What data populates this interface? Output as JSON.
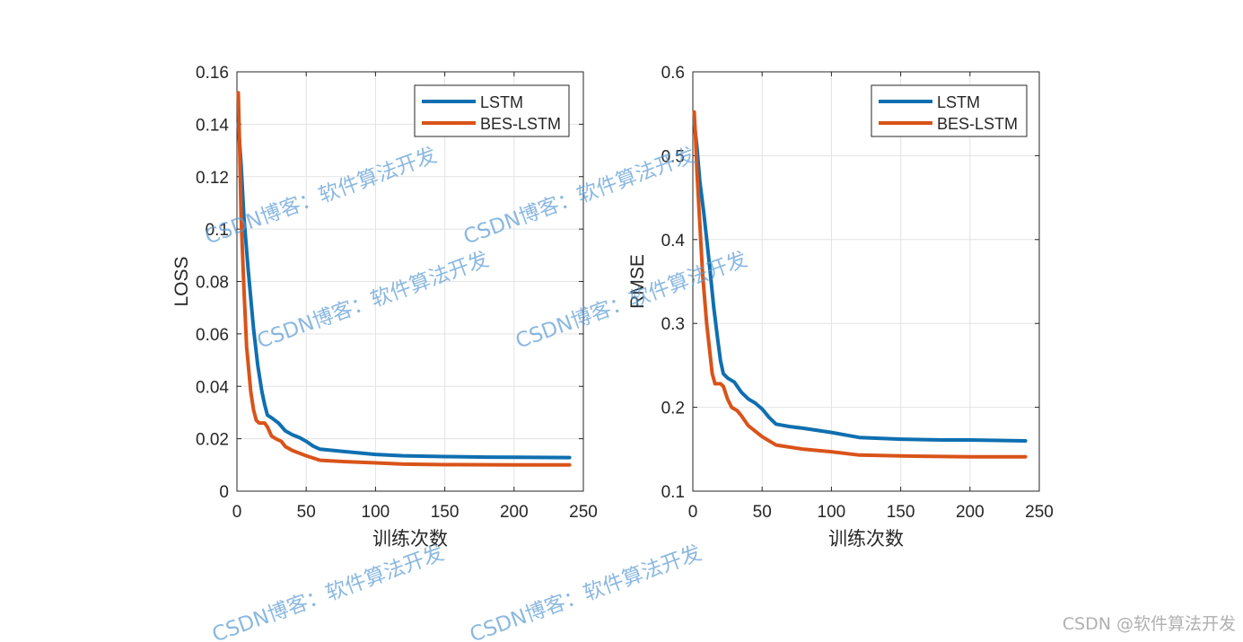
{
  "credit": "CSDN @软件算法开发",
  "watermark": "CSDN博客：软件算法开发",
  "colors": {
    "lstm": "#0f6fb0",
    "bes": "#d95319",
    "grid": "#e3e3e3",
    "axis": "#262626"
  },
  "chart_data": [
    {
      "type": "line",
      "xlabel": "训练次数",
      "ylabel": "LOSS",
      "xlim": [
        0,
        250
      ],
      "ylim": [
        0,
        0.16
      ],
      "xticks": [
        0,
        50,
        100,
        150,
        200,
        250
      ],
      "yticks": [
        0,
        0.02,
        0.04,
        0.06,
        0.08,
        0.1,
        0.12,
        0.14,
        0.16
      ],
      "ytick_labels": [
        "0",
        "0.02",
        "0.04",
        "0.06",
        "0.08",
        "0.1",
        "0.12",
        "0.14",
        "0.16"
      ],
      "grid": true,
      "legend": "top-right",
      "series": [
        {
          "name": "LSTM",
          "color": "#0f6fb0",
          "x": [
            1,
            3,
            5,
            8,
            12,
            15,
            18,
            20,
            22,
            25,
            30,
            35,
            40,
            45,
            50,
            55,
            60,
            70,
            80,
            100,
            120,
            150,
            180,
            200,
            240
          ],
          "y": [
            0.14,
            0.125,
            0.105,
            0.085,
            0.062,
            0.048,
            0.038,
            0.033,
            0.029,
            0.028,
            0.026,
            0.023,
            0.0215,
            0.0205,
            0.019,
            0.0172,
            0.016,
            0.0155,
            0.015,
            0.014,
            0.0135,
            0.0132,
            0.013,
            0.0129,
            0.0128
          ]
        },
        {
          "name": "BES-LSTM",
          "color": "#d95319",
          "x": [
            1,
            2,
            3,
            5,
            7,
            10,
            12,
            14,
            16,
            18,
            20,
            22,
            25,
            28,
            32,
            35,
            40,
            50,
            60,
            80,
            100,
            120,
            150,
            200,
            240
          ],
          "y": [
            0.152,
            0.13,
            0.105,
            0.078,
            0.055,
            0.038,
            0.031,
            0.027,
            0.026,
            0.026,
            0.026,
            0.0245,
            0.021,
            0.02,
            0.019,
            0.017,
            0.0155,
            0.0135,
            0.0118,
            0.0112,
            0.0108,
            0.0103,
            0.0101,
            0.01,
            0.01
          ]
        }
      ]
    },
    {
      "type": "line",
      "xlabel": "训练次数",
      "ylabel": "RMSE",
      "xlim": [
        0,
        250
      ],
      "ylim": [
        0.1,
        0.6
      ],
      "xticks": [
        0,
        50,
        100,
        150,
        200,
        250
      ],
      "yticks": [
        0.1,
        0.2,
        0.3,
        0.4,
        0.5,
        0.6
      ],
      "ytick_labels": [
        "0.1",
        "0.2",
        "0.3",
        "0.4",
        "0.5",
        "0.6"
      ],
      "grid": true,
      "legend": "top-right",
      "series": [
        {
          "name": "LSTM",
          "color": "#0f6fb0",
          "x": [
            1,
            3,
            5,
            8,
            12,
            15,
            18,
            20,
            22,
            25,
            30,
            35,
            40,
            45,
            50,
            55,
            60,
            70,
            80,
            100,
            120,
            150,
            180,
            200,
            240
          ],
          "y": [
            0.54,
            0.51,
            0.47,
            0.43,
            0.37,
            0.32,
            0.28,
            0.255,
            0.24,
            0.235,
            0.23,
            0.218,
            0.21,
            0.205,
            0.198,
            0.188,
            0.18,
            0.177,
            0.175,
            0.17,
            0.164,
            0.162,
            0.161,
            0.161,
            0.16
          ]
        },
        {
          "name": "BES-LSTM",
          "color": "#d95319",
          "x": [
            1,
            2,
            3,
            5,
            7,
            10,
            12,
            14,
            16,
            18,
            20,
            22,
            25,
            28,
            32,
            35,
            40,
            50,
            60,
            80,
            100,
            120,
            150,
            200,
            240
          ],
          "y": [
            0.552,
            0.52,
            0.48,
            0.42,
            0.36,
            0.3,
            0.27,
            0.24,
            0.228,
            0.228,
            0.228,
            0.225,
            0.21,
            0.2,
            0.196,
            0.19,
            0.178,
            0.165,
            0.155,
            0.15,
            0.147,
            0.143,
            0.142,
            0.141,
            0.141
          ]
        }
      ]
    }
  ]
}
